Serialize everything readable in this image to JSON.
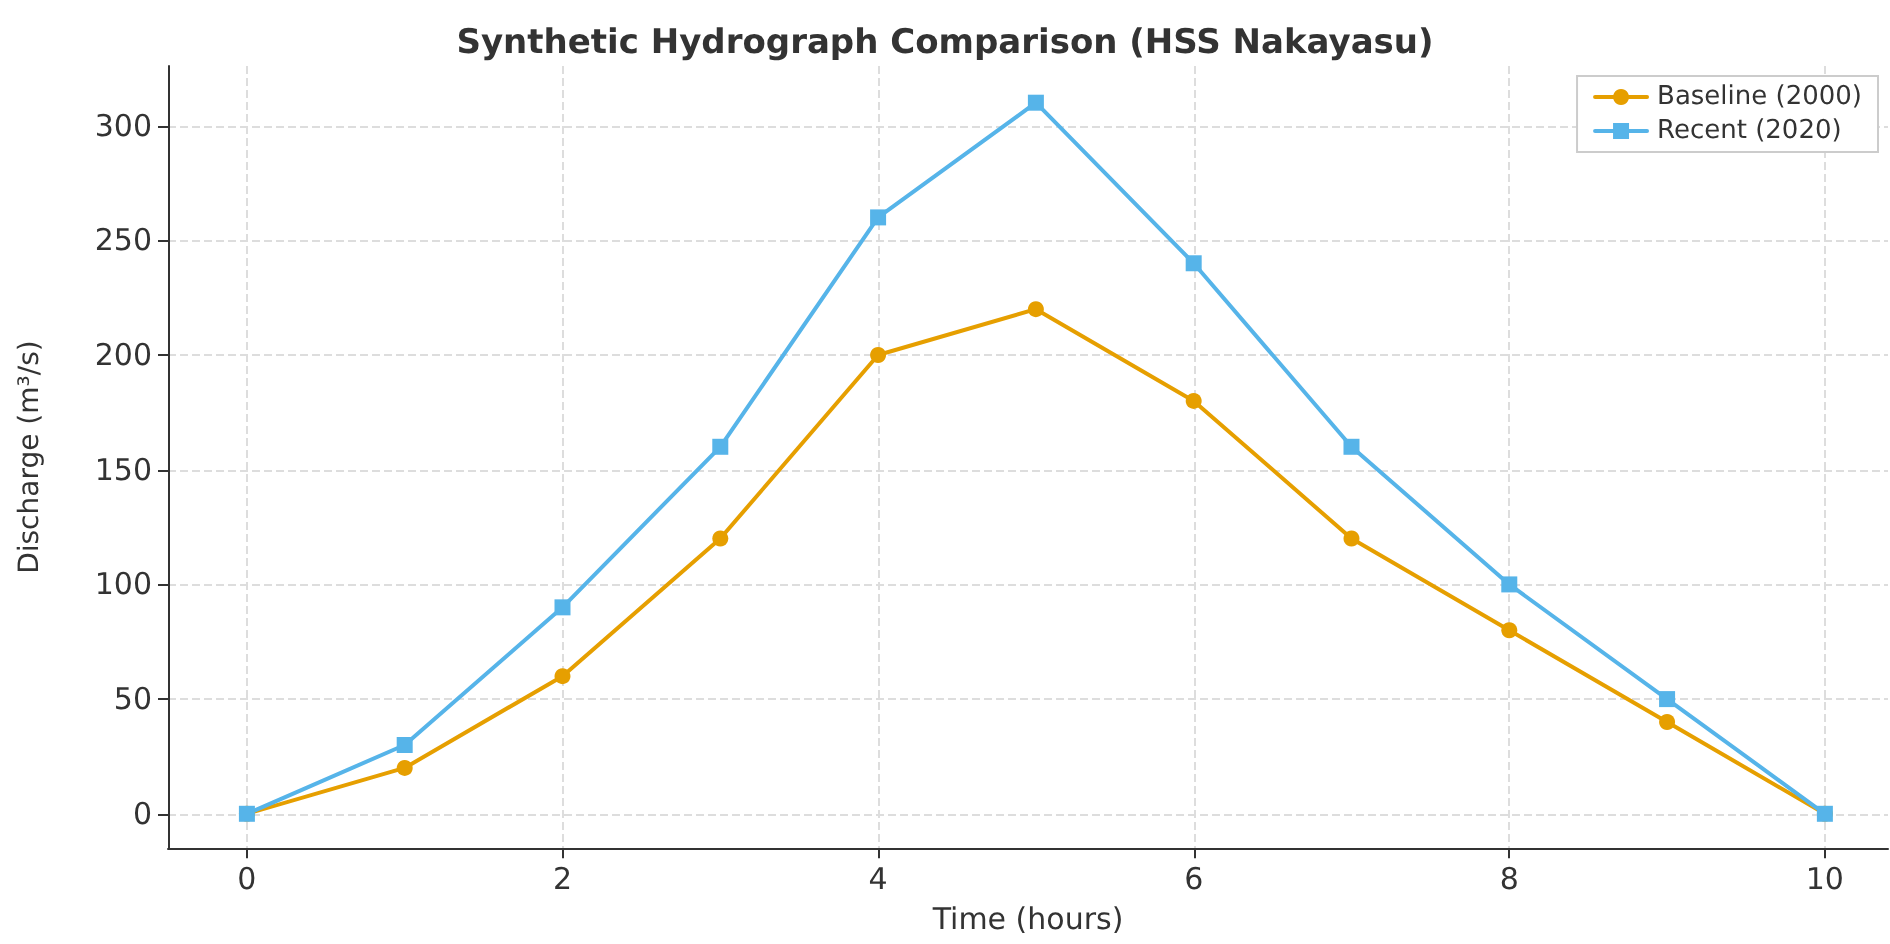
{
  "chart_data": {
    "type": "line",
    "title": "Synthetic Hydrograph Comparison (HSS Nakayasu)",
    "xlabel": "Time (hours)",
    "ylabel": "Discharge (m³/s)",
    "x": [
      0,
      1,
      2,
      3,
      4,
      5,
      6,
      7,
      8,
      9,
      10
    ],
    "series": [
      {
        "name": "Baseline (2000)",
        "color": "#e69f00",
        "marker": "circle",
        "values": [
          0,
          20,
          60,
          120,
          200,
          220,
          180,
          120,
          80,
          40,
          0
        ]
      },
      {
        "name": "Recent (2020)",
        "color": "#56b4e9",
        "marker": "square",
        "values": [
          0,
          30,
          90,
          160,
          260,
          310,
          240,
          160,
          100,
          50,
          0
        ]
      }
    ],
    "xlim": [
      -0.5,
      10.4
    ],
    "xticks": [
      0,
      2,
      4,
      6,
      8,
      10
    ],
    "ylim": [
      -15,
      326
    ],
    "yticks": [
      0,
      50,
      100,
      150,
      200,
      250,
      300
    ],
    "grid": true,
    "legend": "top right",
    "line_style": "solid"
  }
}
